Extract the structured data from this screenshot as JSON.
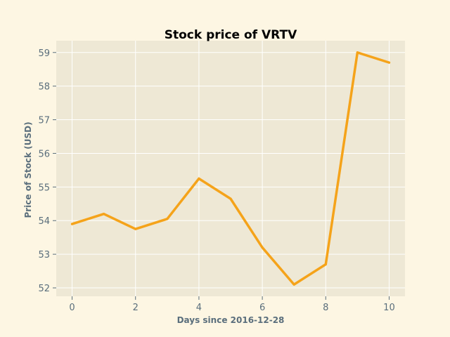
{
  "chart_data": {
    "type": "line",
    "title": "Stock price of VRTV",
    "xlabel": "Days since 2016-12-28",
    "ylabel": "Price of Stock (USD)",
    "x": [
      0,
      1,
      2,
      3,
      4,
      5,
      6,
      7,
      8,
      9,
      10
    ],
    "series": [
      {
        "values": [
          53.9,
          54.2,
          53.75,
          54.05,
          55.25,
          54.65,
          53.2,
          52.1,
          52.7,
          59.0,
          58.7
        ],
        "color": "#f5a31a"
      }
    ],
    "xlim": [
      -0.5,
      10.5
    ],
    "ylim": [
      51.75,
      59.35
    ],
    "xticks": [
      0,
      2,
      4,
      6,
      8,
      10
    ],
    "yticks": [
      52,
      53,
      54,
      55,
      56,
      57,
      58,
      59
    ],
    "grid": true,
    "colors": {
      "background": "#fdf6e3",
      "plot_area": "#eee8d5",
      "grid": "#ffffff",
      "text": "#5a6e7c",
      "title": "#000000"
    }
  }
}
